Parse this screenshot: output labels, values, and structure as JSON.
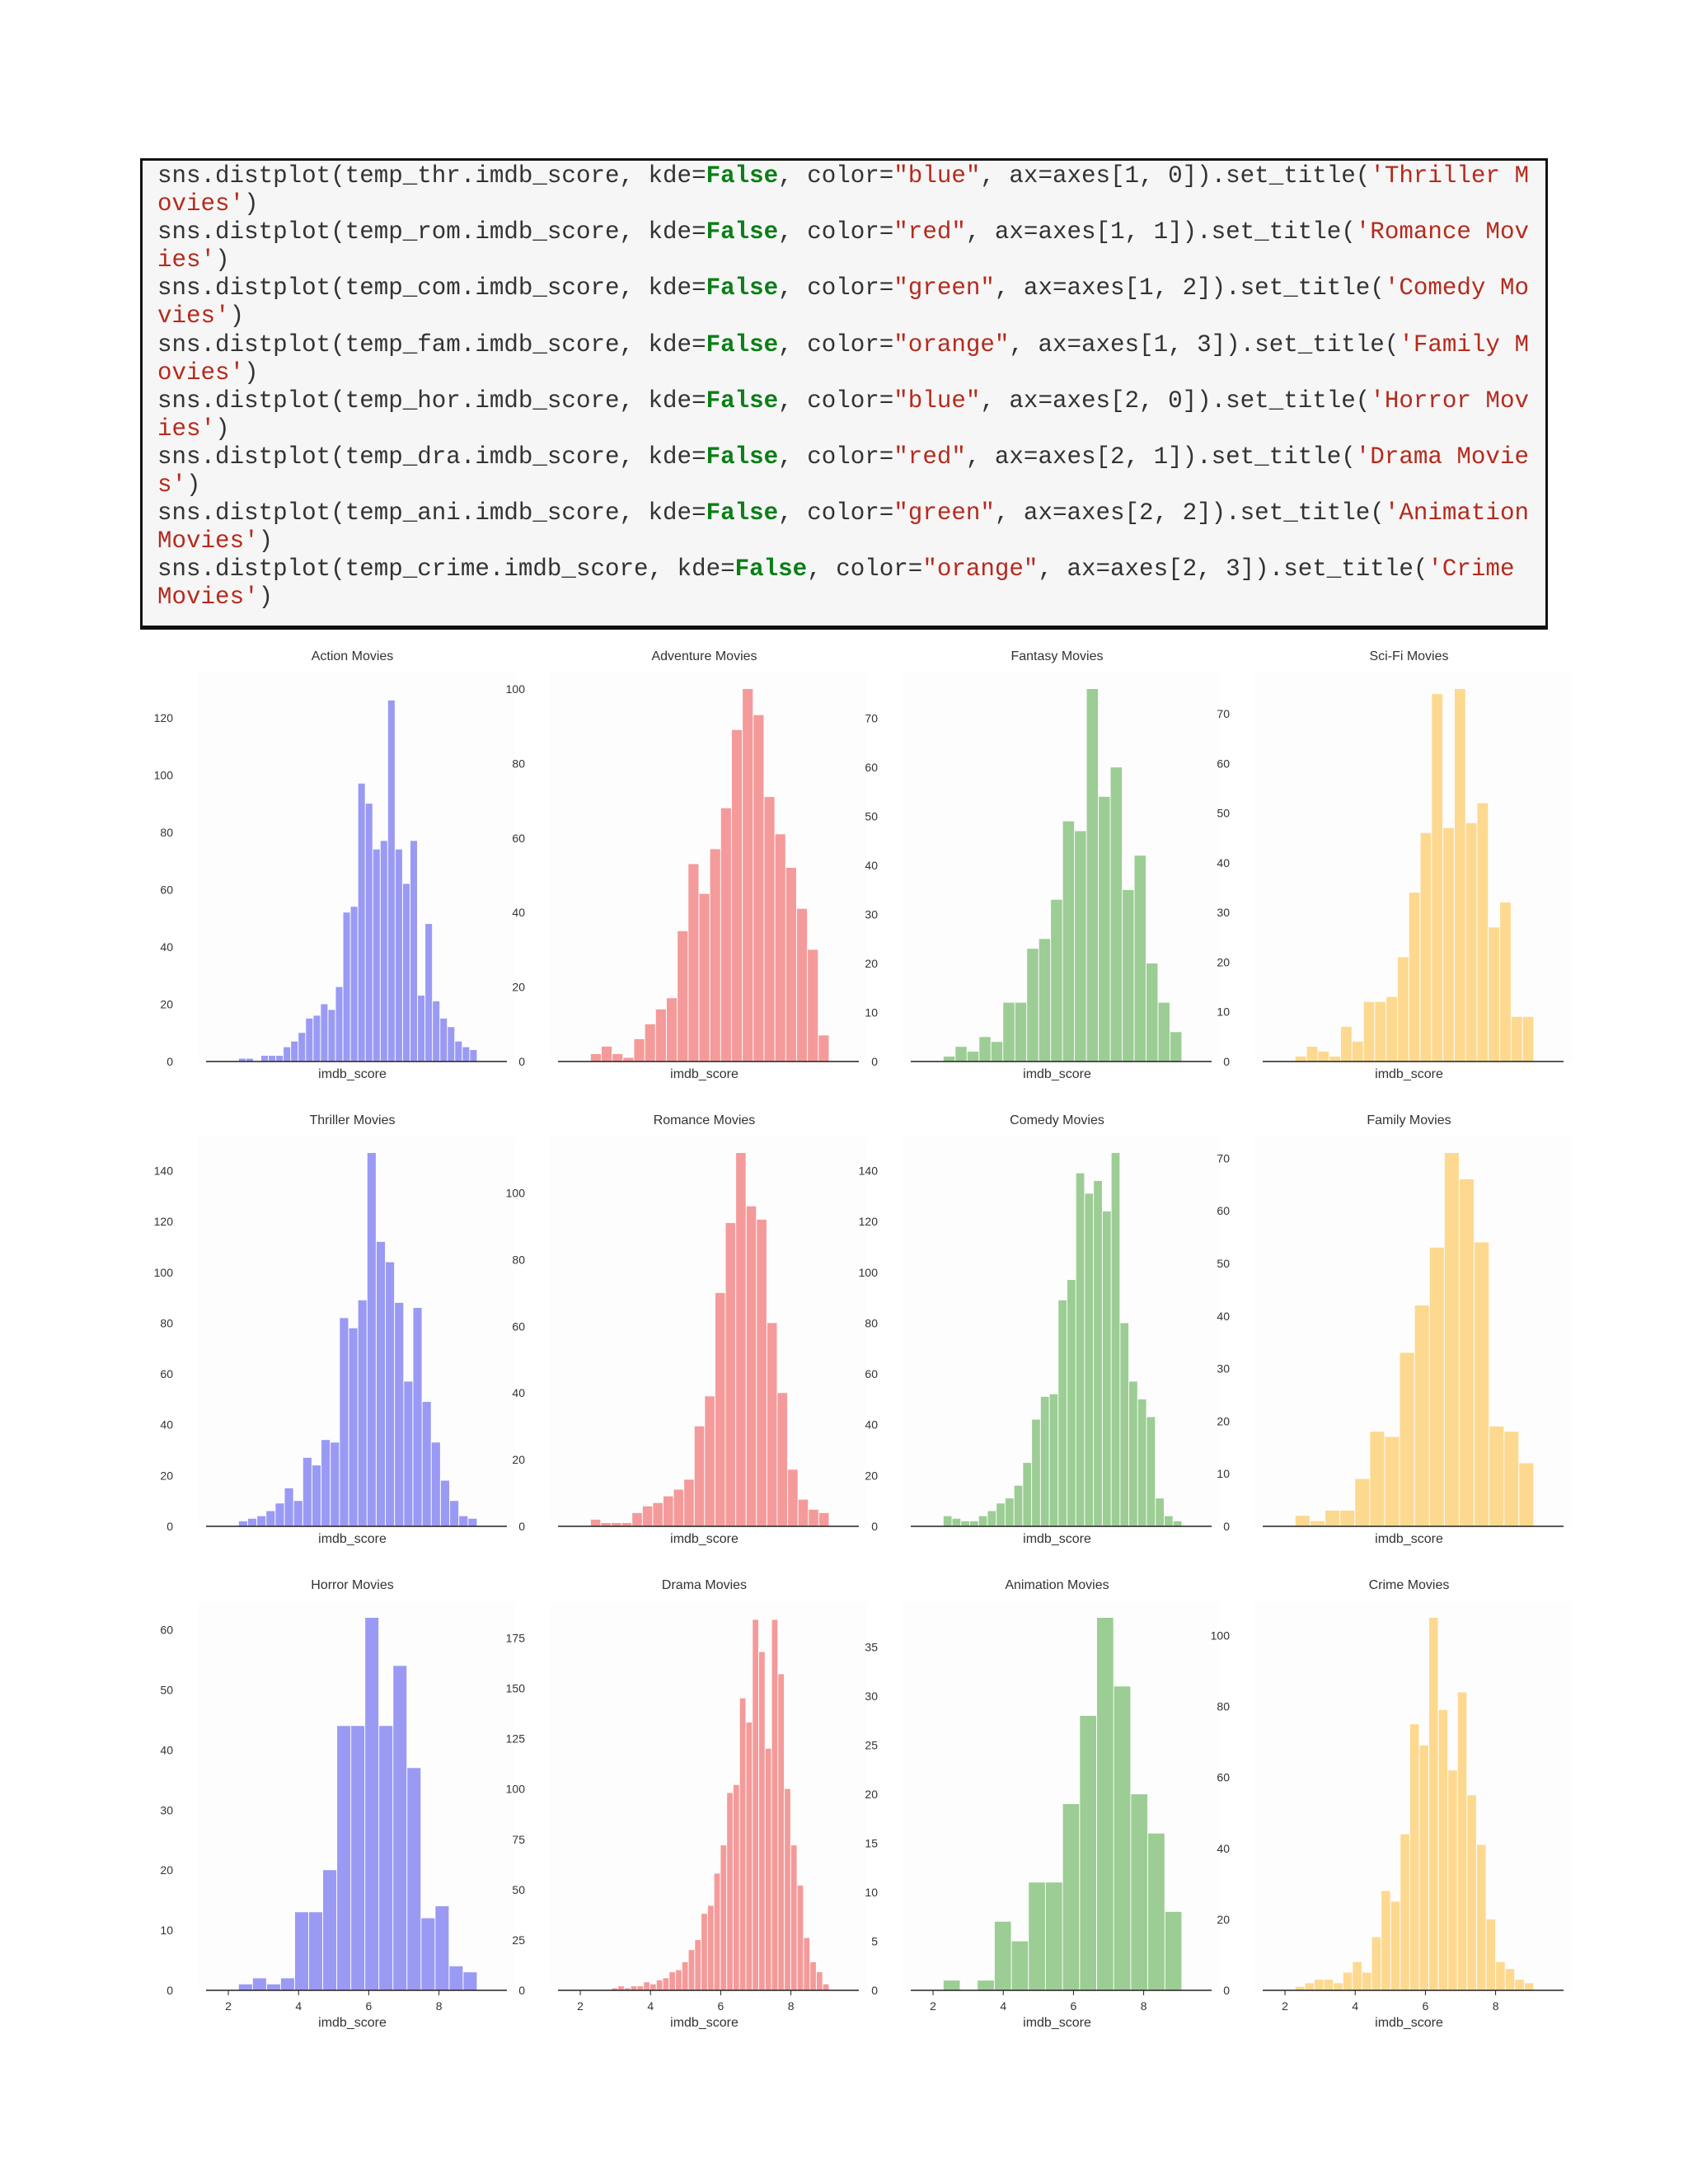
{
  "code": {
    "lines": [
      {
        "pre": "sns.distplot(temp_thr.imdb_score, kde=",
        "kw": "False",
        "mid": ", color=",
        "color": "\"blue\"",
        "axpart": ", ax=axes[1, 0]).set_title(",
        "title": "'Thriller Movies'",
        "end": ")"
      },
      {
        "pre": "sns.distplot(temp_rom.imdb_score, kde=",
        "kw": "False",
        "mid": ", color=",
        "color": "\"red\"",
        "axpart": ", ax=axes[1, 1]).set_title(",
        "title": "'Romance Movies'",
        "end": ")"
      },
      {
        "pre": "sns.distplot(temp_com.imdb_score, kde=",
        "kw": "False",
        "mid": ", color=",
        "color": "\"green\"",
        "axpart": ", ax=axes[1, 2]).set_title(",
        "title": "'Comedy Movies'",
        "end": ")"
      },
      {
        "pre": "sns.distplot(temp_fam.imdb_score, kde=",
        "kw": "False",
        "mid": ", color=",
        "color": "\"orange\"",
        "axpart": ", ax=axes[1, 3]).set_title(",
        "title": "'Family Movies'",
        "end": ")"
      },
      {
        "pre": "sns.distplot(temp_hor.imdb_score, kde=",
        "kw": "False",
        "mid": ", color=",
        "color": "\"blue\"",
        "axpart": ", ax=axes[2, 0]).set_title(",
        "title": "'Horror Movies'",
        "end": ")"
      },
      {
        "pre": "sns.distplot(temp_dra.imdb_score, kde=",
        "kw": "False",
        "mid": ", color=",
        "color": "\"red\"",
        "axpart": ", ax=axes[2, 1]).set_title(",
        "title": "'Drama Movies'",
        "end": ")"
      },
      {
        "pre": "sns.distplot(temp_ani.imdb_score, kde=",
        "kw": "False",
        "mid": ", color=",
        "color": "\"green\"",
        "axpart": ", ax=axes[2, 2]).set_title(",
        "title": "'Animation Movies'",
        "end": ")"
      },
      {
        "pre": "sns.distplot(temp_crime.imdb_score, kde=",
        "kw": "False",
        "mid": ", color=",
        "color": "\"orange\"",
        "axpart": ", ax=axes[2, 3]).set_title(",
        "title": "'Crime Movies'",
        "end": ")"
      }
    ]
  },
  "colors": {
    "blue": "#9a9af5",
    "red": "#f59a9a",
    "green": "#9ccd94",
    "orange": "#fdd990",
    "axis": "#222222",
    "text": "#333333"
  },
  "chart_data": [
    {
      "type": "bar",
      "title": "Action Movies",
      "xlabel": "imdb_score",
      "ylabel": "",
      "color": "blue",
      "xlim": [
        1.6,
        9.7
      ],
      "ylim": [
        0,
        130
      ],
      "yticks": [
        0,
        20,
        40,
        60,
        80,
        100,
        120
      ],
      "xticks": [],
      "values": [
        1,
        1,
        0,
        2,
        2,
        2,
        5,
        7,
        10,
        15,
        16,
        20,
        18,
        26,
        52,
        54,
        97,
        90,
        74,
        77,
        126,
        74,
        62,
        77,
        23,
        48,
        21,
        15,
        12,
        7,
        5,
        4
      ]
    },
    {
      "type": "bar",
      "title": "Adventure Movies",
      "xlabel": "imdb_score",
      "ylabel": "",
      "color": "red",
      "xlim": [
        1.6,
        9.7
      ],
      "ylim": [
        0,
        100
      ],
      "yticks": [
        0,
        20,
        40,
        60,
        80,
        100
      ],
      "xticks": [],
      "values": [
        2,
        4,
        2,
        1,
        6,
        10,
        14,
        17,
        35,
        53,
        45,
        57,
        68,
        89,
        100,
        93,
        71,
        61,
        52,
        41,
        30,
        7
      ]
    },
    {
      "type": "bar",
      "title": "Fantasy Movies",
      "xlabel": "imdb_score",
      "ylabel": "",
      "color": "green",
      "xlim": [
        1.6,
        9.7
      ],
      "ylim": [
        0,
        76
      ],
      "yticks": [
        0,
        10,
        20,
        30,
        40,
        50,
        60,
        70
      ],
      "xticks": [],
      "values": [
        1,
        3,
        2,
        5,
        4,
        12,
        12,
        23,
        25,
        33,
        49,
        47,
        76,
        54,
        60,
        35,
        42,
        20,
        12,
        6
      ]
    },
    {
      "type": "bar",
      "title": "Sci-Fi Movies",
      "xlabel": "imdb_score",
      "ylabel": "",
      "color": "orange",
      "xlim": [
        1.6,
        9.7
      ],
      "ylim": [
        0,
        75
      ],
      "yticks": [
        0,
        10,
        20,
        30,
        40,
        50,
        60,
        70
      ],
      "xticks": [],
      "values": [
        1,
        3,
        2,
        1,
        7,
        4,
        12,
        12,
        13,
        21,
        34,
        46,
        74,
        47,
        75,
        48,
        52,
        27,
        32,
        9,
        9
      ]
    },
    {
      "type": "bar",
      "title": "Thriller Movies",
      "xlabel": "imdb_score",
      "ylabel": "",
      "color": "blue",
      "xlim": [
        1.6,
        9.7
      ],
      "ylim": [
        0,
        147
      ],
      "yticks": [
        0,
        20,
        40,
        60,
        80,
        100,
        120,
        140
      ],
      "xticks": [],
      "values": [
        2,
        3,
        4,
        6,
        9,
        15,
        10,
        27,
        24,
        34,
        33,
        82,
        78,
        89,
        147,
        112,
        104,
        88,
        57,
        86,
        49,
        33,
        18,
        10,
        4,
        3
      ]
    },
    {
      "type": "bar",
      "title": "Romance Movies",
      "xlabel": "imdb_score",
      "ylabel": "",
      "color": "red",
      "xlim": [
        1.6,
        9.7
      ],
      "ylim": [
        0,
        112
      ],
      "yticks": [
        0,
        20,
        40,
        60,
        80,
        100
      ],
      "xticks": [],
      "values": [
        2,
        1,
        1,
        1,
        4,
        6,
        7,
        9,
        11,
        14,
        30,
        39,
        70,
        91,
        112,
        96,
        92,
        61,
        40,
        17,
        8,
        5,
        4
      ]
    },
    {
      "type": "bar",
      "title": "Comedy Movies",
      "xlabel": "imdb_score",
      "ylabel": "",
      "color": "green",
      "xlim": [
        1.6,
        9.7
      ],
      "ylim": [
        0,
        147
      ],
      "yticks": [
        0,
        20,
        40,
        60,
        80,
        100,
        120,
        140
      ],
      "xticks": [],
      "values": [
        4,
        3,
        2,
        2,
        4,
        6,
        9,
        11,
        16,
        25,
        42,
        51,
        52,
        89,
        97,
        139,
        131,
        136,
        124,
        147,
        80,
        57,
        50,
        43,
        11,
        4,
        2
      ]
    },
    {
      "type": "bar",
      "title": "Family Movies",
      "xlabel": "imdb_score",
      "ylabel": "",
      "color": "orange",
      "xlim": [
        1.6,
        9.7
      ],
      "ylim": [
        0,
        71
      ],
      "yticks": [
        0,
        10,
        20,
        30,
        40,
        50,
        60,
        70
      ],
      "xticks": [],
      "values": [
        2,
        1,
        3,
        3,
        9,
        18,
        17,
        33,
        42,
        53,
        71,
        66,
        54,
        19,
        18,
        12
      ]
    },
    {
      "type": "bar",
      "title": "Horror Movies",
      "xlabel": "imdb_score",
      "ylabel": "",
      "color": "blue",
      "xlim": [
        1.6,
        9.7
      ],
      "ylim": [
        0,
        62
      ],
      "yticks": [
        0,
        10,
        20,
        30,
        40,
        50,
        60
      ],
      "xticks": [
        2,
        4,
        6,
        8
      ],
      "values": [
        1,
        2,
        1,
        2,
        13,
        13,
        20,
        44,
        44,
        62,
        44,
        54,
        37,
        12,
        14,
        4,
        3
      ]
    },
    {
      "type": "bar",
      "title": "Drama Movies",
      "xlabel": "imdb_score",
      "ylabel": "",
      "color": "red",
      "xlim": [
        1.6,
        9.7
      ],
      "ylim": [
        0,
        185
      ],
      "yticks": [
        0,
        25,
        50,
        75,
        100,
        125,
        150,
        175
      ],
      "xticks": [
        2,
        4,
        6,
        8
      ],
      "values": [
        1,
        2,
        1,
        2,
        2,
        4,
        3,
        5,
        6,
        9,
        10,
        14,
        20,
        25,
        38,
        42,
        58,
        72,
        98,
        102,
        145,
        133,
        184,
        168,
        120,
        184,
        157,
        100,
        72,
        52,
        26,
        14,
        9,
        3
      ]
    },
    {
      "type": "bar",
      "title": "Animation Movies",
      "xlabel": "imdb_score",
      "ylabel": "",
      "color": "green",
      "xlim": [
        1.6,
        9.7
      ],
      "ylim": [
        0,
        38
      ],
      "yticks": [
        0,
        5,
        10,
        15,
        20,
        25,
        30,
        35
      ],
      "xticks": [
        2,
        4,
        6,
        8
      ],
      "values": [
        1,
        0,
        1,
        7,
        5,
        11,
        11,
        19,
        28,
        38,
        31,
        20,
        16,
        8
      ]
    },
    {
      "type": "bar",
      "title": "Crime Movies",
      "xlabel": "imdb_score",
      "ylabel": "",
      "color": "orange",
      "xlim": [
        1.6,
        9.7
      ],
      "ylim": [
        0,
        105
      ],
      "yticks": [
        0,
        20,
        40,
        60,
        80,
        100
      ],
      "xticks": [
        2,
        4,
        6,
        8
      ],
      "values": [
        1,
        2,
        3,
        3,
        2,
        5,
        8,
        5,
        15,
        28,
        25,
        44,
        75,
        69,
        105,
        79,
        62,
        84,
        55,
        41,
        20,
        8,
        6,
        3,
        2
      ]
    }
  ]
}
